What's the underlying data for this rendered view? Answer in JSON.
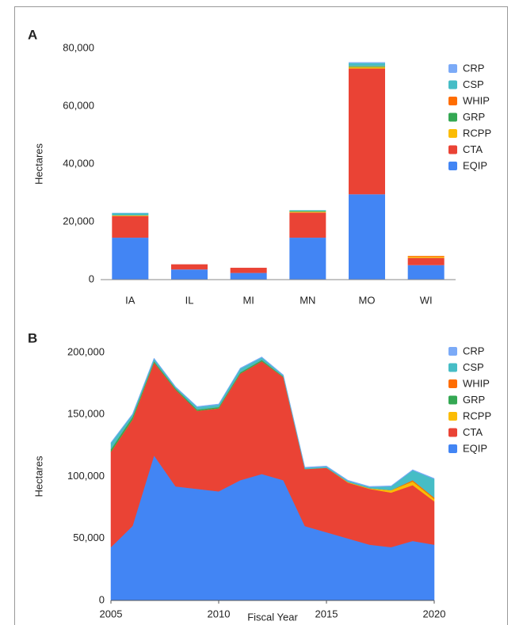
{
  "chart_data": [
    {
      "type": "bar",
      "panel_label": "A",
      "y_label": "Hectares",
      "categories": [
        "IA",
        "IL",
        "MI",
        "MN",
        "MO",
        "WI"
      ],
      "ylim": [
        0,
        80000
      ],
      "yticks": [
        0,
        {
          "value": 20000,
          "label": "20,000"
        },
        {
          "value": 40000,
          "label": "40,000"
        },
        {
          "value": 60000,
          "label": "60,000"
        },
        {
          "value": 80000,
          "label": "80,000"
        }
      ],
      "series": [
        {
          "name": "EQIP",
          "color": "#4285f4",
          "values": [
            14500,
            3500,
            2300,
            14500,
            29500,
            5000
          ]
        },
        {
          "name": "CTA",
          "color": "#ea4335",
          "values": [
            7500,
            1800,
            1800,
            8700,
            43500,
            2500
          ]
        },
        {
          "name": "RCPP",
          "color": "#fbbc04",
          "values": [
            200,
            0,
            0,
            300,
            500,
            400
          ]
        },
        {
          "name": "GRP",
          "color": "#34a853",
          "values": [
            100,
            0,
            0,
            200,
            300,
            0
          ]
        },
        {
          "name": "WHIP",
          "color": "#ff6d01",
          "values": [
            0,
            0,
            0,
            0,
            100,
            300
          ]
        },
        {
          "name": "CSP",
          "color": "#46bdc6",
          "values": [
            700,
            0,
            0,
            300,
            1000,
            0
          ]
        },
        {
          "name": "CRP",
          "color": "#7baaf7",
          "values": [
            100,
            0,
            0,
            0,
            300,
            0
          ]
        }
      ]
    },
    {
      "type": "area",
      "panel_label": "B",
      "y_label": "Hectares",
      "x_label": "Fiscal Year",
      "x": [
        2005,
        2006,
        2007,
        2008,
        2009,
        2010,
        2011,
        2012,
        2013,
        2014,
        2015,
        2016,
        2017,
        2018,
        2019,
        2020
      ],
      "xlim": [
        2005,
        2020
      ],
      "xticks": [
        2005,
        2010,
        2015,
        2020
      ],
      "ylim": [
        0,
        200000
      ],
      "yticks": [
        0,
        {
          "value": 50000,
          "label": "50,000"
        },
        {
          "value": 100000,
          "label": "100,000"
        },
        {
          "value": 150000,
          "label": "150,000"
        },
        {
          "value": 200000,
          "label": "200,000"
        }
      ],
      "series": [
        {
          "name": "EQIP",
          "color": "#4285f4",
          "values": [
            43000,
            60000,
            117000,
            92000,
            90000,
            88000,
            97000,
            102000,
            97000,
            60000,
            55000,
            50000,
            45000,
            43000,
            48000,
            45000
          ]
        },
        {
          "name": "CTA",
          "color": "#ea4335",
          "values": [
            77000,
            86000,
            75000,
            78000,
            63000,
            67000,
            86000,
            91000,
            83000,
            46000,
            52000,
            45000,
            45000,
            44000,
            45000,
            35000
          ]
        },
        {
          "name": "RCPP",
          "color": "#fbbc04",
          "values": [
            0,
            0,
            0,
            0,
            0,
            0,
            0,
            0,
            0,
            0,
            0,
            500,
            500,
            2000,
            3000,
            2000
          ]
        },
        {
          "name": "GRP",
          "color": "#34a853",
          "values": [
            2000,
            2000,
            1000,
            1000,
            1000,
            1000,
            1000,
            1000,
            500,
            0,
            0,
            0,
            0,
            0,
            0,
            0
          ]
        },
        {
          "name": "WHIP",
          "color": "#ff6d01",
          "values": [
            0,
            0,
            0,
            0,
            0,
            0,
            0,
            0,
            0,
            0,
            0,
            0,
            0,
            0,
            1000,
            1000
          ]
        },
        {
          "name": "CSP",
          "color": "#46bdc6",
          "values": [
            5000,
            2000,
            2000,
            1000,
            2000,
            2000,
            3000,
            2000,
            1000,
            1000,
            1000,
            1000,
            1000,
            3000,
            8000,
            15000
          ]
        },
        {
          "name": "CRP",
          "color": "#7baaf7",
          "values": [
            500,
            500,
            500,
            500,
            500,
            500,
            500,
            500,
            500,
            500,
            500,
            500,
            500,
            500,
            500,
            500
          ]
        }
      ]
    }
  ]
}
